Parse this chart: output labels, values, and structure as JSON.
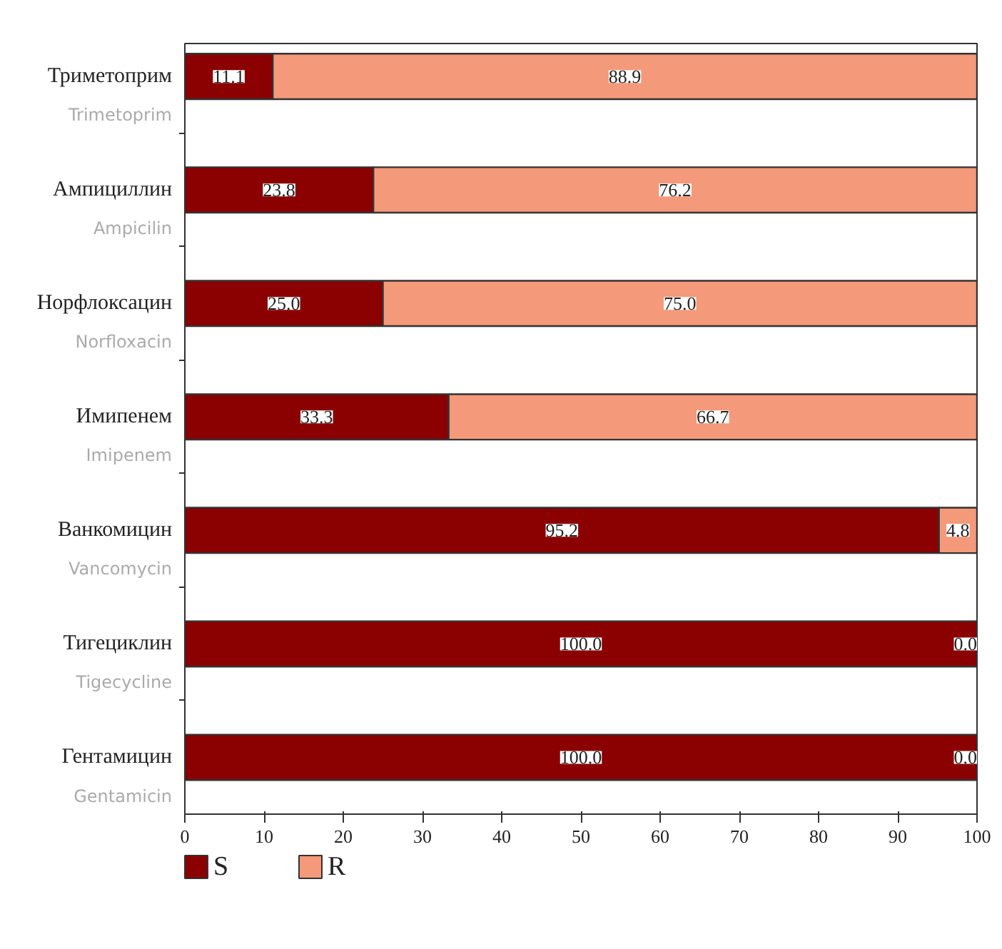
{
  "chart_data": {
    "type": "bar",
    "orientation": "horizontal",
    "stacked": true,
    "categories": [
      "Триметоприм\nTrimetoprim",
      "Ампициллин\nAmpicilin",
      "Норфлоксацин\nNorfloxacin",
      "Имипенем\nImipenem",
      "Ванкомицин\nVancomycin",
      "Тигециклин\nTigecycline",
      "Гентамицин\nGentamicin"
    ],
    "series": [
      {
        "name": "S",
        "color": "#8b0000",
        "values": [
          11.1,
          23.8,
          25.0,
          33.3,
          95.2,
          100.0,
          100.0
        ],
        "value_labels": [
          "11.1",
          "23.8",
          "25.0",
          "33.3",
          "95.2",
          "100.0",
          "100.0"
        ]
      },
      {
        "name": "R",
        "color": "#f4997a",
        "values": [
          88.9,
          76.2,
          75.0,
          66.7,
          4.8,
          0.0,
          0.0
        ],
        "value_labels": [
          "88.9",
          "76.2",
          "75.0",
          "66.7",
          "4.8",
          "0.0",
          "0.0"
        ]
      }
    ],
    "xlim": [
      0,
      100
    ],
    "xticks": [
      0,
      10,
      20,
      30,
      40,
      50,
      60,
      70,
      80,
      90,
      100
    ],
    "grid": false,
    "legend": "bottom left"
  }
}
